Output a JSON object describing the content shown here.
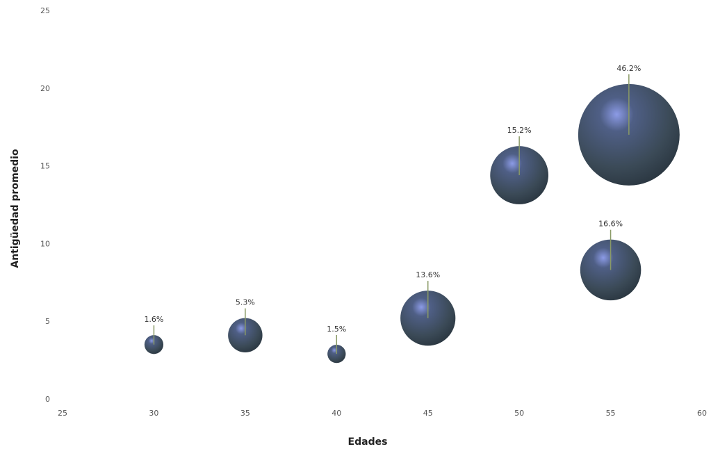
{
  "chart_data": {
    "type": "scatter",
    "title": "",
    "xlabel": "Edades",
    "ylabel": "Antigüedad promedio",
    "xlim": [
      25,
      60
    ],
    "ylim": [
      0,
      25
    ],
    "x_ticks": [
      "25",
      "30",
      "35",
      "40",
      "45",
      "50",
      "55",
      "60"
    ],
    "y_ticks": [
      "0",
      "5",
      "10",
      "15",
      "20",
      "25"
    ],
    "grid": false,
    "legend": "none",
    "bubble_size_unit": "%",
    "points": [
      {
        "x": 30,
        "y": 3.5,
        "size": 1.6,
        "label": "1.6%"
      },
      {
        "x": 35,
        "y": 4.1,
        "size": 5.3,
        "label": "5.3%"
      },
      {
        "x": 40,
        "y": 2.9,
        "size": 1.5,
        "label": "1.5%"
      },
      {
        "x": 45,
        "y": 5.2,
        "size": 13.6,
        "label": "13.6%"
      },
      {
        "x": 50,
        "y": 14.4,
        "size": 15.2,
        "label": "15.2%"
      },
      {
        "x": 55,
        "y": 8.3,
        "size": 16.6,
        "label": "16.6%"
      },
      {
        "x": 56,
        "y": 17.0,
        "size": 46.2,
        "label": "46.2%"
      }
    ],
    "colors": {
      "bubble": "#3f4f5e",
      "bubble_highlight": "#7a8fd8",
      "leader_line": "#8a9a66"
    }
  }
}
